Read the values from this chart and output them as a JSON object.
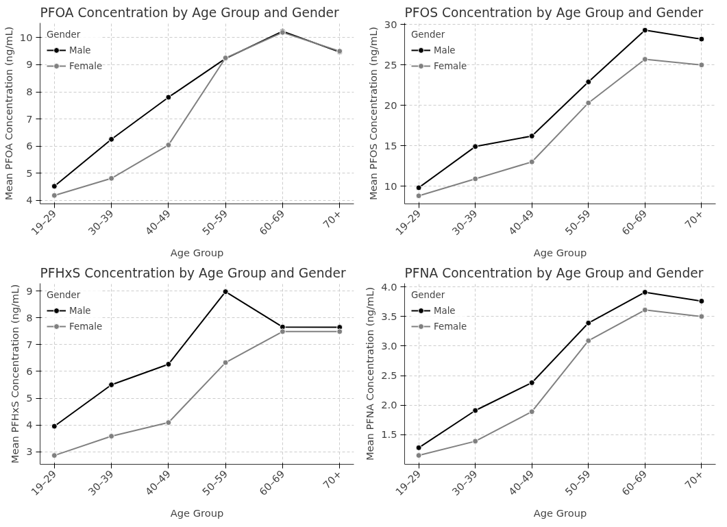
{
  "chart_data": [
    {
      "type": "line",
      "title": "PFOA Concentration by Age Group and Gender",
      "xlabel": "Age Group",
      "ylabel": "Mean PFOA Concentration (ng/mL)",
      "legend_title": "Gender",
      "categories": [
        "19–29",
        "30–39",
        "40–49",
        "50–59",
        "60–69",
        "70+"
      ],
      "series": [
        {
          "name": "Male",
          "color": "#000000",
          "values": [
            4.52,
            6.25,
            7.8,
            9.23,
            10.23,
            9.47
          ]
        },
        {
          "name": "Female",
          "color": "#808080",
          "values": [
            4.18,
            4.81,
            6.04,
            9.25,
            10.19,
            9.5
          ]
        }
      ],
      "ylim": [
        3.87,
        10.54
      ],
      "yticks": [
        4,
        5,
        6,
        7,
        8,
        9,
        10
      ],
      "grid": true,
      "legend": "top left",
      "marker": "circle",
      "line_style": "solid"
    },
    {
      "type": "line",
      "title": "PFOS Concentration by Age Group and Gender",
      "xlabel": "Age Group",
      "ylabel": "Mean PFOS Concentration (ng/mL)",
      "legend_title": "Gender",
      "categories": [
        "19–29",
        "30–39",
        "40–49",
        "50–59",
        "60–69",
        "70+"
      ],
      "series": [
        {
          "name": "Male",
          "color": "#000000",
          "values": [
            9.8,
            14.9,
            16.2,
            22.9,
            29.3,
            28.2
          ]
        },
        {
          "name": "Female",
          "color": "#808080",
          "values": [
            8.8,
            10.9,
            13.0,
            20.3,
            25.7,
            25.0
          ]
        }
      ],
      "ylim": [
        7.8,
        30.2
      ],
      "yticks": [
        10,
        15,
        20,
        25,
        30
      ],
      "grid": true,
      "legend": "top left",
      "marker": "circle",
      "line_style": "solid"
    },
    {
      "type": "line",
      "title": "PFHxS Concentration by Age Group and Gender",
      "xlabel": "Age Group",
      "ylabel": "Mean PFHxS Concentration (ng/mL)",
      "legend_title": "Gender",
      "categories": [
        "19–29",
        "30–39",
        "40–49",
        "50–59",
        "60–69",
        "70+"
      ],
      "series": [
        {
          "name": "Male",
          "color": "#000000",
          "values": [
            3.95,
            5.5,
            6.27,
            8.98,
            7.66,
            7.65
          ]
        },
        {
          "name": "Female",
          "color": "#808080",
          "values": [
            2.86,
            3.58,
            4.09,
            6.33,
            7.49,
            7.49
          ]
        }
      ],
      "ylim": [
        2.53,
        9.29
      ],
      "yticks": [
        3,
        4,
        5,
        6,
        7,
        8,
        9
      ],
      "grid": true,
      "legend": "top left",
      "marker": "circle",
      "line_style": "solid"
    },
    {
      "type": "line",
      "title": "PFNA Concentration by Age Group and Gender",
      "xlabel": "Age Group",
      "ylabel": "Mean PFNA Concentration (ng/mL)",
      "legend_title": "Gender",
      "categories": [
        "19–29",
        "30–39",
        "40–49",
        "50–59",
        "60–69",
        "70+"
      ],
      "series": [
        {
          "name": "Male",
          "color": "#000000",
          "values": [
            1.28,
            1.91,
            2.38,
            3.39,
            3.91,
            3.76
          ]
        },
        {
          "name": "Female",
          "color": "#808080",
          "values": [
            1.15,
            1.39,
            1.89,
            3.09,
            3.61,
            3.5
          ]
        }
      ],
      "ylim": [
        1.0,
        4.06
      ],
      "yticks": [
        {
          "value": 1.5,
          "label": "1.5"
        },
        {
          "value": 2.0,
          "label": "2.0"
        },
        {
          "value": 2.5,
          "label": "2.5"
        },
        {
          "value": 3.0,
          "label": "3.0"
        },
        {
          "value": 3.5,
          "label": "3.5"
        },
        {
          "value": 4.0,
          "label": "4.0"
        }
      ],
      "grid": true,
      "legend": "top left",
      "marker": "circle",
      "line_style": "solid"
    }
  ]
}
